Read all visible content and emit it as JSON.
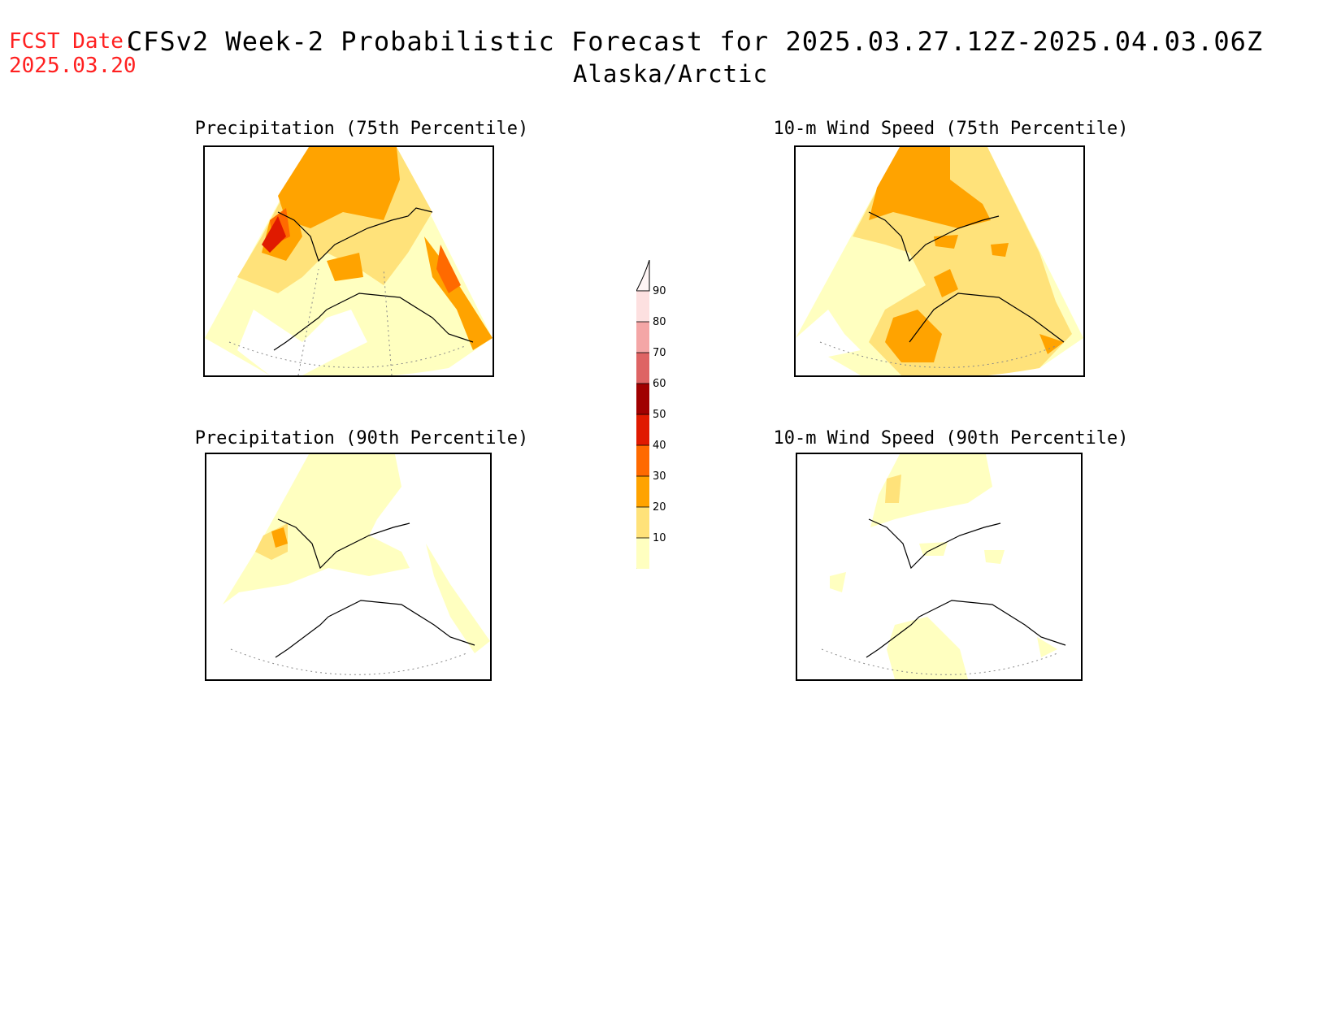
{
  "header": {
    "fcst_label": "FCST Date:",
    "fcst_date": "2025.03.20",
    "title": "CFSv2 Week-2 Probabilistic Forecast for 2025.03.27.12Z-2025.04.03.06Z",
    "subtitle": "Alaska/Arctic"
  },
  "panels": [
    {
      "title": "Precipitation (75th Percentile)"
    },
    {
      "title": "10-m Wind Speed (75th Percentile)"
    },
    {
      "title": "Precipitation (90th Percentile)"
    },
    {
      "title": "10-m Wind Speed (90th Percentile)"
    }
  ],
  "colorbar": {
    "levels": [
      "90",
      "80",
      "70",
      "60",
      "50",
      "40",
      "30",
      "20",
      "10"
    ],
    "colors": [
      "#fde0e0",
      "#f4a6a6",
      "#de6464",
      "#a00000",
      "#e01a00",
      "#ff6a00",
      "#ffa300",
      "#ffe27a",
      "#ffffc0"
    ]
  }
}
